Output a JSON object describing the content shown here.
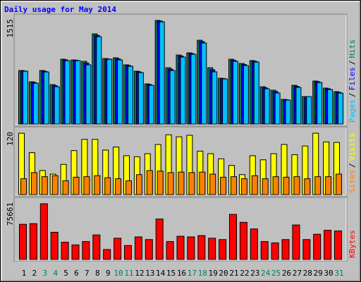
{
  "chart_data": {
    "type": "bar",
    "title": "Daily usage for May 2014",
    "title_color": "#0000ff",
    "legend_separator": "/",
    "categories": [
      "1",
      "2",
      "3",
      "4",
      "5",
      "6",
      "7",
      "8",
      "9",
      "10",
      "11",
      "12",
      "13",
      "14",
      "15",
      "16",
      "17",
      "18",
      "19",
      "20",
      "21",
      "22",
      "23",
      "24",
      "25",
      "26",
      "27",
      "28",
      "29",
      "30",
      "31"
    ],
    "category_colors": [
      "#000000",
      "#000000",
      "#00805c",
      "#00805c",
      "#000000",
      "#000000",
      "#000000",
      "#000000",
      "#000000",
      "#00805c",
      "#00805c",
      "#000000",
      "#000000",
      "#000000",
      "#000000",
      "#000000",
      "#00805c",
      "#00805c",
      "#000000",
      "#000000",
      "#000000",
      "#000000",
      "#000000",
      "#00805c",
      "#00805c",
      "#000000",
      "#000000",
      "#000000",
      "#000000",
      "#000000",
      "#00805c"
    ],
    "panels": [
      {
        "ylim": [
          0,
          1515
        ],
        "yticks": [
          1515
        ],
        "series": [
          {
            "name": "Hits",
            "color": "#00805c",
            "values": [
              783,
              618,
              783,
              577,
              948,
              938,
              917,
              1319,
              958,
              969,
              866,
              773,
              587,
              1515,
              824,
              1010,
              1041,
              1226,
              824,
              670,
              948,
              886,
              928,
              546,
              495,
              361,
              567,
              402,
              629,
              526,
              474
            ]
          },
          {
            "name": "Files",
            "color": "#0000ff",
            "values": [
              778,
              608,
              772,
              562,
              938,
              933,
              892,
              1298,
              953,
              954,
              856,
              763,
              577,
              1505,
              804,
              995,
              1031,
              1206,
              794,
              665,
              933,
              871,
              918,
              531,
              475,
              356,
              552,
              402,
              619,
              516,
              464
            ]
          },
          {
            "name": "Pages",
            "color": "#00c0ff",
            "values": [
              773,
              597,
              762,
              546,
              927,
              927,
              866,
              1278,
              948,
              938,
              845,
              752,
              567,
              1494,
              783,
              979,
              1020,
              1185,
              763,
              660,
              917,
              855,
              907,
              515,
              454,
              351,
              536,
              402,
              608,
              505,
              453
            ]
          }
        ]
      },
      {
        "ylim": [
          0,
          120
        ],
        "yticks": [
          120
        ],
        "series": [
          {
            "name": "Visits",
            "color": "#ffff00",
            "values": [
              120,
              82,
              47,
              40,
              59,
              86,
              108,
              108,
              87,
              93,
              76,
              74,
              80,
              98,
              117,
              113,
              116,
              85,
              80,
              70,
              57,
              39,
              76,
              68,
              80,
              98,
              78,
              95,
              120,
              103,
              102
            ]
          },
          {
            "name": "Sites",
            "color": "#ff8000",
            "values": [
              31,
              43,
              35,
              37,
              27,
              34,
              35,
              37,
              33,
              31,
              27,
              39,
              47,
              46,
              43,
              44,
              43,
              44,
              40,
              34,
              35,
              31,
              37,
              31,
              35,
              34,
              35,
              31,
              35,
              35,
              40
            ]
          }
        ]
      },
      {
        "ylim": [
          0,
          75661
        ],
        "yticks": [
          75661
        ],
        "series": [
          {
            "name": "KBytes",
            "color": "#ff0000",
            "values": [
              47739,
              48640,
              75661,
              36930,
              23419,
              19816,
              24320,
              33327,
              13511,
              28823,
              18915,
              30625,
              27022,
              54945,
              24320,
              31526,
              30625,
              32426,
              28823,
              27022,
              61249,
              50441,
              41434,
              24320,
              22518,
              27022,
              46838,
              27022,
              34228,
              39632,
              38731
            ]
          }
        ]
      }
    ]
  }
}
